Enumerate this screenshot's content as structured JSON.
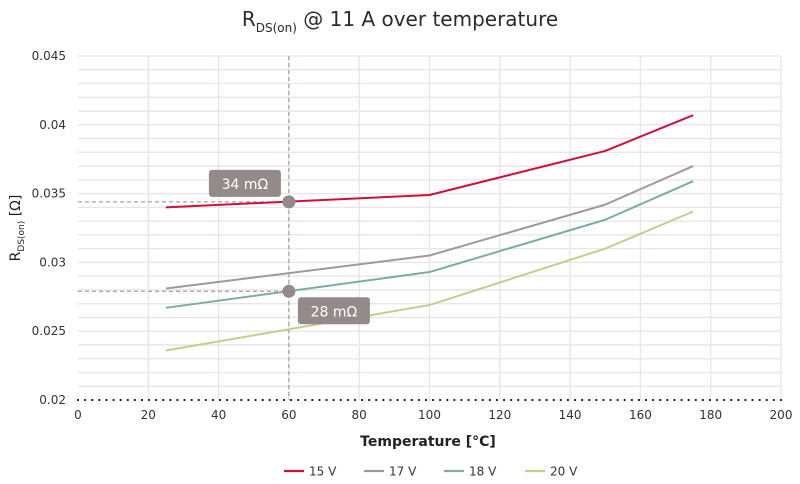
{
  "chart_data": {
    "type": "line",
    "title": {
      "main": "R",
      "subscript": "DS(on)",
      "rest": " @ 11 A over temperature"
    },
    "xlabel": "Temperature [°C]",
    "ylabel": {
      "main": "R",
      "subscript": "DS(on)",
      "rest": " [Ω]"
    },
    "xlim": [
      0,
      200
    ],
    "ylim": [
      0.02,
      0.045
    ],
    "x_ticks": [
      0,
      20,
      40,
      60,
      80,
      100,
      120,
      140,
      160,
      180,
      200
    ],
    "x_tick_labels": [
      "0",
      "20",
      "40",
      "60",
      "80",
      "100",
      "120",
      "140",
      "160",
      "180",
      "200"
    ],
    "y_ticks": [
      0.02,
      0.025,
      0.03,
      0.035,
      0.04,
      0.045
    ],
    "y_tick_labels": [
      "0.02",
      "0.025",
      "0.03",
      "0.035",
      "0.04",
      "0.045"
    ],
    "y_minor_step": 0.001,
    "grid": true,
    "legend_position": "bottom",
    "series": [
      {
        "name": "15 V",
        "color": "#d0103a",
        "x": [
          25,
          100,
          150,
          175
        ],
        "y": [
          0.034,
          0.0349,
          0.0381,
          0.0407
        ]
      },
      {
        "name": "17 V",
        "color": "#a39898",
        "x": [
          25,
          100,
          150,
          175
        ],
        "y": [
          0.0281,
          0.0305,
          0.0342,
          0.037
        ]
      },
      {
        "name": "18 V",
        "color": "#7aaea0",
        "x": [
          25,
          100,
          150,
          175
        ],
        "y": [
          0.0267,
          0.0293,
          0.0331,
          0.0359
        ]
      },
      {
        "name": "20 V",
        "color": "#c2cf8a",
        "x": [
          25,
          100,
          150,
          175
        ],
        "y": [
          0.0236,
          0.0269,
          0.031,
          0.0337
        ]
      }
    ],
    "annotations": [
      {
        "label": "34 mΩ",
        "x": 60,
        "y": 0.0344,
        "label_side": "above-left"
      },
      {
        "label": "28 mΩ",
        "x": 60,
        "y": 0.0279,
        "label_side": "below-right"
      }
    ],
    "annotation_color": "#958a8b",
    "grid_color": "#e9e4e5",
    "axis_color": "#222222"
  }
}
